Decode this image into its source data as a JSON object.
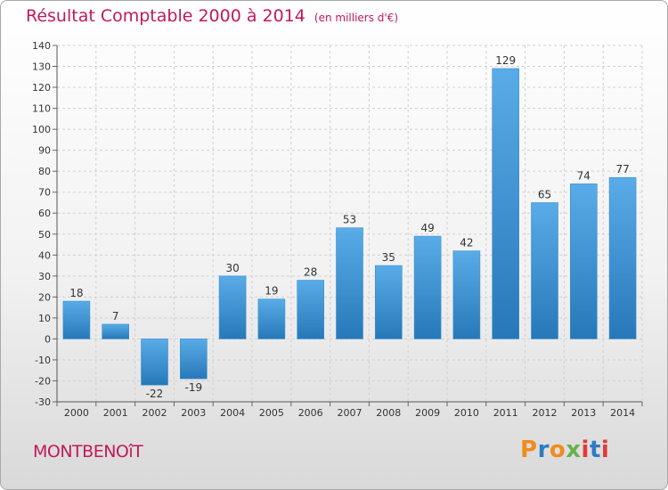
{
  "header": {
    "title": "Résultat Comptable 2000 à 2014",
    "unit": "(en milliers d'€)"
  },
  "footer": {
    "commune": "MONTBENOîT",
    "logo": "Proxiti"
  },
  "colors": {
    "title": "#c2185b",
    "bar_light": "#5aace8",
    "bar_dark": "#2678b8",
    "logo_letters": [
      "#f08c1e",
      "#2e7bc4",
      "#f08c1e",
      "#6ab04c",
      "#e53935",
      "#2e7bc4",
      "#e53935"
    ]
  },
  "chart_data": {
    "type": "bar",
    "title": "Résultat Comptable 2000 à 2014",
    "subtitle": "(en milliers d'€)",
    "categories": [
      "2000",
      "2001",
      "2002",
      "2003",
      "2004",
      "2005",
      "2006",
      "2007",
      "2008",
      "2009",
      "2010",
      "2011",
      "2012",
      "2013",
      "2014"
    ],
    "values": [
      18,
      7,
      -22,
      -19,
      30,
      19,
      28,
      53,
      35,
      49,
      42,
      129,
      65,
      74,
      77
    ],
    "ylim": [
      -30,
      140
    ],
    "yticks": [
      -30,
      -20,
      -10,
      0,
      10,
      20,
      30,
      40,
      50,
      60,
      70,
      80,
      90,
      100,
      110,
      120,
      130,
      140
    ],
    "grid": true,
    "data_labels": true
  }
}
